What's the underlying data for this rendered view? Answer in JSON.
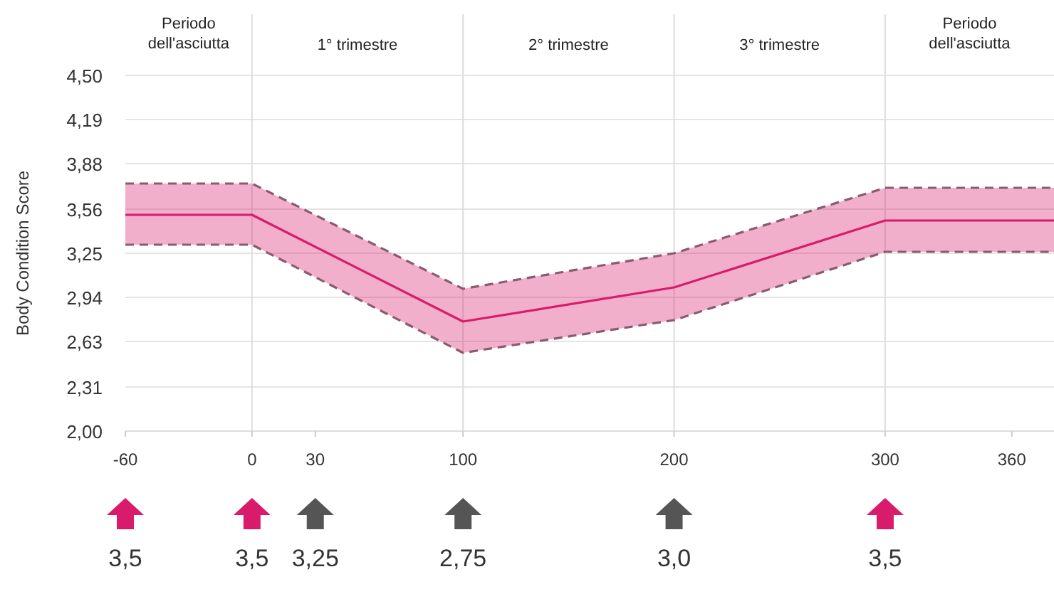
{
  "chart_data": {
    "type": "line",
    "ylabel": "Body Condition Score",
    "x": [
      -60,
      0,
      100,
      200,
      300,
      380
    ],
    "series": [
      {
        "color": "#d81b6a",
        "values": [
          3.52,
          3.52,
          2.77,
          3.01,
          3.48,
          3.48
        ],
        "lower": [
          3.31,
          3.31,
          2.55,
          2.78,
          3.26,
          3.26
        ],
        "upper": [
          3.74,
          3.74,
          3.0,
          3.25,
          3.71,
          3.71
        ]
      },
      {
        "color": "#8a5a70",
        "line_style": "dashed",
        "values": [
          3.74,
          3.74,
          3.0,
          3.25,
          3.71,
          3.71
        ]
      },
      {
        "color": "#8a5a70",
        "line_style": "dashed",
        "values": [
          3.31,
          3.31,
          2.55,
          2.78,
          3.26,
          3.26
        ]
      }
    ],
    "xlim": [
      -60,
      380
    ],
    "xticks": [
      -60,
      0,
      30,
      100,
      200,
      300,
      360
    ],
    "ylim": [
      2.0,
      4.5
    ],
    "yticks": [
      {
        "value": 2.0,
        "label": "2,00"
      },
      {
        "value": 2.31,
        "label": "2,31"
      },
      {
        "value": 2.63,
        "label": "2,63"
      },
      {
        "value": 2.94,
        "label": "2,94"
      },
      {
        "value": 3.25,
        "label": "3,25"
      },
      {
        "value": 3.56,
        "label": "3,56"
      },
      {
        "value": 3.88,
        "label": "3,88"
      },
      {
        "value": 4.19,
        "label": "4,19"
      },
      {
        "value": 4.5,
        "label": "4,50"
      }
    ],
    "grid": "y",
    "marker": "none",
    "line_style": "solid",
    "ref_lines": [
      {
        "axis": "x",
        "value": 0,
        "color": "#dddddd"
      },
      {
        "axis": "x",
        "value": 100,
        "color": "#dddddd"
      },
      {
        "axis": "x",
        "value": 200,
        "color": "#dddddd"
      },
      {
        "axis": "x",
        "value": 300,
        "color": "#dddddd"
      }
    ],
    "annotations": [
      "Periodo\ndell'asciutta",
      "1° trimestre",
      "2° trimestre",
      "3° trimestre",
      "Periodo\ndell'asciutta",
      "3,5",
      "3,5",
      "3,25",
      "2,75",
      "3,0",
      "3,5"
    ]
  }
}
